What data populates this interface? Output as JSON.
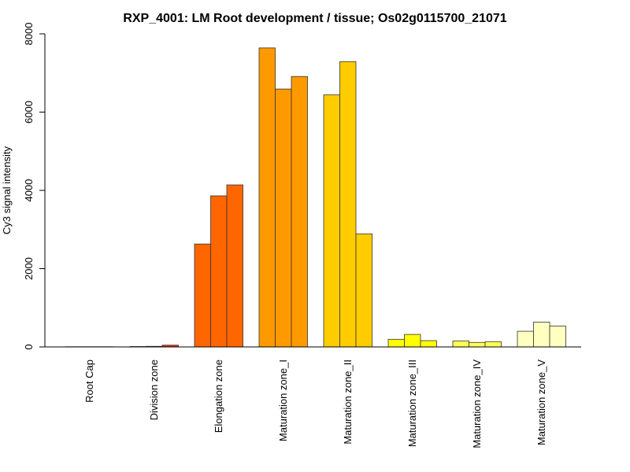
{
  "chart_data": {
    "type": "bar",
    "title": "RXP_4001: LM Root development / tissue; Os02g0115700_21071",
    "xlabel": "",
    "ylabel": "Cy3 signal intensity",
    "ylim": [
      0,
      8000
    ],
    "yticks": [
      0,
      2000,
      4000,
      6000,
      8000
    ],
    "grid": false,
    "legend": "none",
    "categories": [
      "Root Cap",
      "Division zone",
      "Elongation zone",
      "Maturation zone_I",
      "Maturation zone_II",
      "Maturation zone_III",
      "Maturation zone_IV",
      "Maturation zone_V"
    ],
    "colors": [
      "#FF0000",
      "#FF2A00",
      "#FF6600",
      "#FF9900",
      "#FFCC00",
      "#FFFF00",
      "#FFFF55",
      "#FFFFBF"
    ],
    "replicates_per_category": 3,
    "values": [
      [
        5,
        5,
        5
      ],
      [
        10,
        15,
        45
      ],
      [
        2630,
        3860,
        4140
      ],
      [
        7640,
        6590,
        6910
      ],
      [
        6440,
        7290,
        2890
      ],
      [
        195,
        320,
        160
      ],
      [
        155,
        115,
        135
      ],
      [
        400,
        635,
        535
      ]
    ]
  }
}
